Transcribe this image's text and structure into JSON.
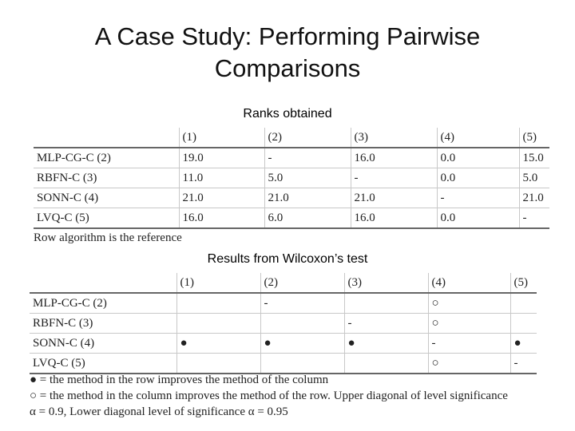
{
  "slide": {
    "title_line1": "A Case Study: Performing Pairwise",
    "title_line2": "Comparisons"
  },
  "ranks": {
    "caption": "Ranks obtained",
    "columns": [
      "(1)",
      "(2)",
      "(3)",
      "(4)",
      "(5)"
    ],
    "rows": [
      {
        "label": "MLP-CG-C (2)",
        "cells": [
          "19.0",
          "-",
          "16.0",
          "0.0",
          "15.0"
        ]
      },
      {
        "label": "RBFN-C (3)",
        "cells": [
          "11.0",
          "5.0",
          "-",
          "0.0",
          "5.0"
        ]
      },
      {
        "label": "SONN-C (4)",
        "cells": [
          "21.0",
          "21.0",
          "21.0",
          "-",
          "21.0"
        ]
      },
      {
        "label": "LVQ-C (5)",
        "cells": [
          "16.0",
          "6.0",
          "16.0",
          "0.0",
          "-"
        ]
      }
    ],
    "footnote": "Row algorithm is the reference"
  },
  "wilcoxon": {
    "caption": "Results from Wilcoxon’s test",
    "columns": [
      "(1)",
      "(2)",
      "(3)",
      "(4)",
      "(5)"
    ],
    "rows": [
      {
        "label": "MLP-CG-C (2)",
        "cells": [
          "",
          "-",
          "",
          "○",
          ""
        ]
      },
      {
        "label": "RBFN-C (3)",
        "cells": [
          "",
          "",
          "-",
          "○",
          ""
        ]
      },
      {
        "label": "SONN-C (4)",
        "cells": [
          "●",
          "●",
          "●",
          "-",
          "●"
        ]
      },
      {
        "label": "LVQ-C (5)",
        "cells": [
          "",
          "",
          "",
          "○",
          "-"
        ]
      }
    ],
    "legend_line1": "● = the method in the row improves the method of the column",
    "legend_line2": "○ = the method in the column improves the method of the row. Upper diagonal of level significance",
    "legend_line3": "α = 0.9, Lower diagonal level of significance α = 0.95"
  }
}
